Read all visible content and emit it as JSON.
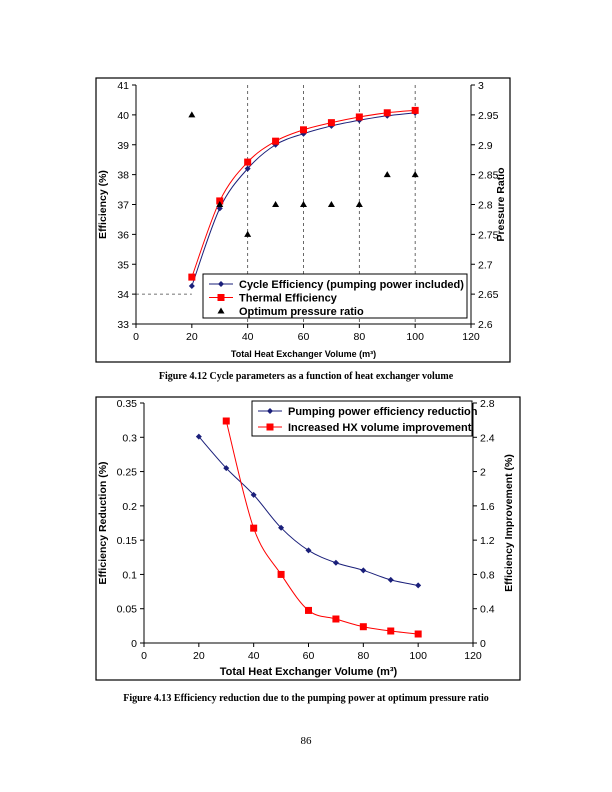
{
  "chart_data": [
    {
      "type": "line",
      "x": [
        20,
        30,
        40,
        50,
        60,
        70,
        80,
        90,
        100
      ],
      "xlabel": "Total Heat Exchanger Volume (m³)",
      "ylabel": "Efficiency (%)",
      "y2label": "Pressure Ratio",
      "xlim": [
        0,
        120
      ],
      "xticks": [
        "0",
        "20",
        "40",
        "60",
        "80",
        "100",
        "120"
      ],
      "ylim": [
        33,
        41
      ],
      "yticks": [
        "33",
        "34",
        "35",
        "36",
        "37",
        "38",
        "39",
        "40",
        "41"
      ],
      "y2lim": [
        2.6,
        3.0
      ],
      "y2ticks": [
        "2.6",
        "2.65",
        "2.7",
        "2.75",
        "2.8",
        "2.85",
        "2.9",
        "2.95",
        "3"
      ],
      "grid": "dashed vertical at 40, 60, 80, 100; dashed horizontal at 34 (x 0-20)",
      "legend": "bottom-right",
      "series": [
        {
          "name": "Cycle Efficiency (pumping power included)",
          "axis": "left",
          "marker": "diamond",
          "color": "#1a1f7a",
          "values": [
            34.27,
            36.87,
            38.2,
            39.0,
            39.37,
            39.63,
            39.82,
            39.97,
            40.07
          ]
        },
        {
          "name": "Thermal Efficiency",
          "axis": "left",
          "marker": "square",
          "color": "#ff0000",
          "values": [
            34.57,
            37.12,
            38.42,
            39.12,
            39.5,
            39.74,
            39.93,
            40.07,
            40.15
          ]
        },
        {
          "name": "Optimum pressure ratio",
          "axis": "right",
          "marker": "triangle",
          "color": "#000000",
          "values": [
            2.95,
            2.8,
            2.75,
            2.8,
            2.8,
            2.8,
            2.8,
            2.85,
            2.85
          ]
        }
      ]
    },
    {
      "type": "line",
      "x": [
        20,
        30,
        40,
        50,
        60,
        70,
        80,
        90,
        100
      ],
      "xlabel": "Total Heat Exchanger Volume (m³)",
      "ylabel": "Efficiency Reduction (%)",
      "y2label": "Efficiency Improvement (%)",
      "xlim": [
        0,
        120
      ],
      "xticks": [
        "0",
        "20",
        "40",
        "60",
        "80",
        "100",
        "120"
      ],
      "ylim": [
        0,
        0.35
      ],
      "yticks": [
        "0",
        "0.05",
        "0.1",
        "0.15",
        "0.2",
        "0.25",
        "0.3",
        "0.35"
      ],
      "y2lim": [
        0,
        2.8
      ],
      "y2ticks": [
        "0",
        "0.4",
        "0.8",
        "1.2",
        "1.6",
        "2",
        "2.4",
        "2.8"
      ],
      "grid": "off",
      "legend": "top-right",
      "series": [
        {
          "name": "Pumping power efficiency reduction",
          "axis": "left",
          "marker": "diamond",
          "color": "#1a1f7a",
          "values": [
            0.301,
            0.255,
            0.216,
            0.168,
            0.135,
            0.117,
            0.106,
            0.092,
            0.084
          ]
        },
        {
          "name": "Increased HX volume improvement",
          "axis": "right",
          "marker": "square",
          "color": "#ff0000",
          "values": [
            null,
            2.59,
            1.34,
            0.8,
            0.38,
            0.28,
            0.19,
            0.14,
            0.105
          ]
        }
      ]
    }
  ],
  "captions": {
    "fig1": "Figure 4.12 Cycle parameters as a function of heat exchanger volume",
    "fig2": "Figure 4.13 Efficiency reduction due to the pumping power at optimum pressure ratio"
  },
  "page_number": "86"
}
